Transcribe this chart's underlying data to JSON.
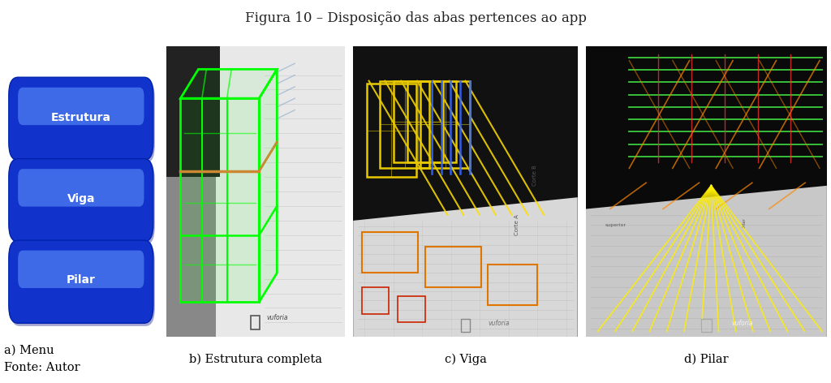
{
  "title": "Figura 10 – Disposição das abas pertences ao app",
  "title_fontsize": 12,
  "figure_bg": "#ffffff",
  "panel_label_fontsize": 10.5,
  "menu_buttons": [
    "Estrutura",
    "Viga",
    "Pilar"
  ],
  "button_text_color": "#ffffff",
  "button_fontsize": 10,
  "panels": {
    "a": [
      0.005,
      0.12,
      0.185,
      0.76
    ],
    "b": [
      0.2,
      0.12,
      0.215,
      0.76
    ],
    "c": [
      0.425,
      0.12,
      0.27,
      0.76
    ],
    "d": [
      0.705,
      0.12,
      0.29,
      0.76
    ]
  }
}
